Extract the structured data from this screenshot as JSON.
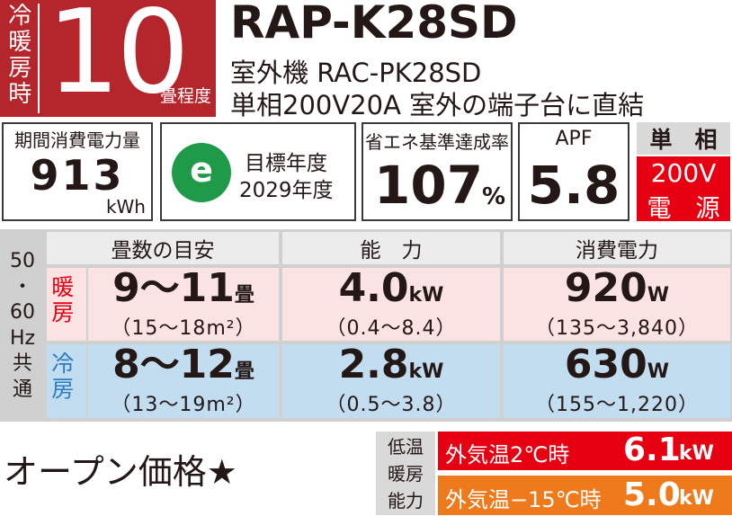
{
  "badge": {
    "label": "冷暖房時",
    "size": "10",
    "unit": "畳程度"
  },
  "header": {
    "model": "RAP-K28SD",
    "outdoor_unit": "室外機 RAC-PK28SD",
    "power_supply": "単相200V20A 室外の端子台に直結"
  },
  "annual_power": {
    "label": "期間消費電力量",
    "value": "913",
    "unit": "kWh"
  },
  "target": {
    "icon": "e",
    "line1": "目標年度",
    "line2": "2029年度"
  },
  "achievement": {
    "label": "省エネ基準達成率",
    "value": "107",
    "unit": "%"
  },
  "apf": {
    "label": "APF",
    "value": "5.8"
  },
  "phase": {
    "top": "単　相",
    "voltage": "200V",
    "bottom": "電　源"
  },
  "table": {
    "side_label": [
      "50",
      "・60",
      "Hz",
      "共",
      "通"
    ],
    "headers": [
      "畳数の目安",
      "能　力",
      "消費電力"
    ],
    "rows": [
      {
        "mode": "暖房",
        "cells": [
          {
            "main": "9～11",
            "unit": "畳",
            "range": "（15～18m²）"
          },
          {
            "main": "4.0",
            "unit": "kW",
            "range": "（0.4～8.4）"
          },
          {
            "main": "920",
            "unit": "W",
            "range": "（135～3,840）"
          }
        ]
      },
      {
        "mode": "冷房",
        "cells": [
          {
            "main": "8～12",
            "unit": "畳",
            "range": "（13～19m²）"
          },
          {
            "main": "2.8",
            "unit": "kW",
            "range": "（0.5～3.8）"
          },
          {
            "main": "630",
            "unit": "W",
            "range": "（155～1,220）"
          }
        ]
      }
    ]
  },
  "price": "オープン価格★",
  "low_temp": {
    "label": [
      "低温",
      "暖房",
      "能力"
    ],
    "rows": [
      {
        "condition": "外気温2℃時",
        "value": "6.1",
        "unit": "kW"
      },
      {
        "condition": "外気温−15℃時",
        "value": "5.0",
        "unit": "kW"
      }
    ]
  }
}
